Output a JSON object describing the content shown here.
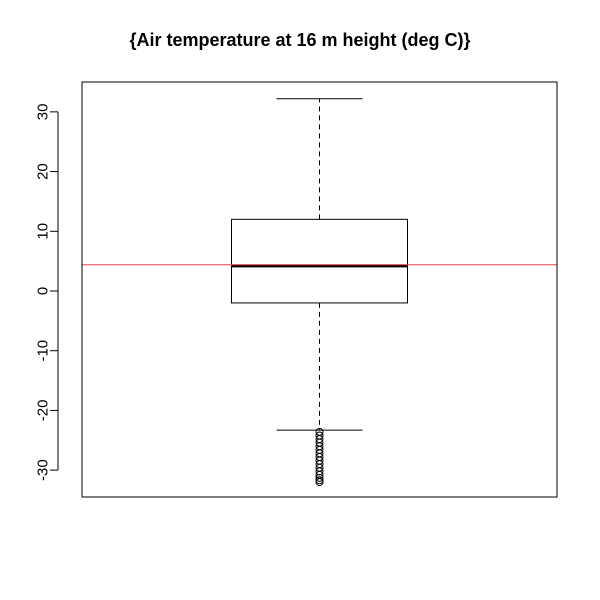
{
  "chart_data": {
    "type": "boxplot",
    "title": "{Air temperature at 16 m height (deg C)}",
    "xlabel": "",
    "ylabel": "",
    "ylim": [
      -34.5,
      35
    ],
    "yticks": [
      -30,
      -20,
      -10,
      0,
      10,
      20,
      30
    ],
    "ytick_labels": [
      "-30",
      "-20",
      "-10",
      "0",
      "10",
      "20",
      "30"
    ],
    "grid": false,
    "boxes": [
      {
        "whisker_low": -23.3,
        "q1": -2.0,
        "median": 4.2,
        "q3": 12.0,
        "whisker_high": 32.2,
        "outliers": [
          -23.6,
          -24.2,
          -24.8,
          -25.4,
          -26.0,
          -26.6,
          -27.2,
          -27.8,
          -28.4,
          -29.0,
          -29.6,
          -30.2,
          -30.8,
          -31.3,
          -31.7,
          -32.0
        ]
      }
    ],
    "reference_line": {
      "value": 4.4,
      "color": "#e8474f"
    },
    "colors": {
      "box": "#000000",
      "median": "#000000",
      "reference": "#e8474f"
    }
  }
}
